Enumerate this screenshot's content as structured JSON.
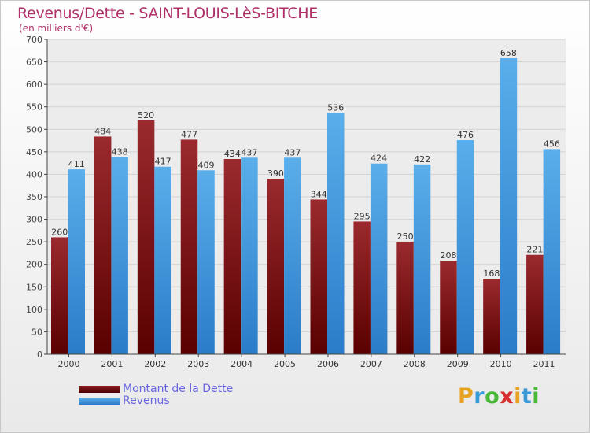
{
  "chart_data": {
    "type": "bar",
    "title": "Revenus/Dette - SAINT-LOUIS-LèS-BITCHE",
    "subtitle": "(en milliers d'€)",
    "categories": [
      "2000",
      "2001",
      "2002",
      "2003",
      "2004",
      "2005",
      "2006",
      "2007",
      "2008",
      "2009",
      "2010",
      "2011"
    ],
    "series": [
      {
        "name": "Montant de la Dette",
        "color": "#7a1418",
        "values": [
          260,
          484,
          520,
          477,
          434,
          390,
          344,
          295,
          250,
          208,
          168,
          221
        ]
      },
      {
        "name": "Revenus",
        "color": "#4a9fe0",
        "values": [
          411,
          438,
          417,
          409,
          437,
          437,
          536,
          424,
          422,
          476,
          658,
          456
        ]
      }
    ],
    "ylim": [
      0,
      700
    ],
    "yticks": [
      0,
      50,
      100,
      150,
      200,
      250,
      300,
      350,
      400,
      450,
      500,
      550,
      600,
      650,
      700
    ],
    "grid": true,
    "legend_position": "bottom-left"
  },
  "logo": {
    "letters": [
      "P",
      "r",
      "o",
      "x",
      "i",
      "t",
      "i"
    ],
    "colors": [
      "#e8a020",
      "#3a9ad8",
      "#4ab838",
      "#d83030",
      "#e8a020",
      "#3a9ad8",
      "#4ab838"
    ]
  }
}
